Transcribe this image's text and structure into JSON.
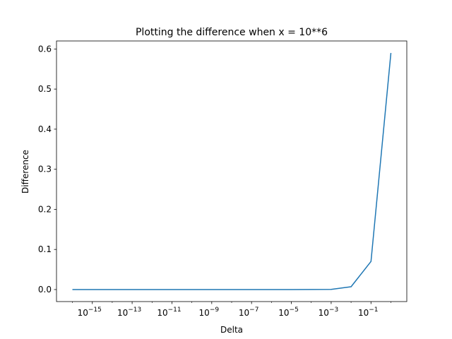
{
  "chart_data": {
    "type": "line",
    "title": "Plotting the difference when x = 10**6",
    "xlabel": "Delta",
    "ylabel": "Difference",
    "x_scale": "log",
    "x_exponents": [
      -16,
      -15,
      -14,
      -13,
      -12,
      -11,
      -10,
      -9,
      -8,
      -7,
      -6,
      -5,
      -4,
      -3,
      -2,
      -1,
      0
    ],
    "y": [
      0,
      0,
      0,
      0,
      0,
      0,
      0,
      0,
      0,
      0,
      0,
      1e-05,
      0.0001,
      0.0005,
      0.007,
      0.07,
      0.59
    ],
    "xlim_exponents": [
      -16.8,
      0.8
    ],
    "ylim": [
      -0.03,
      0.62
    ],
    "xticks": [
      {
        "label": "10",
        "exp": "−15",
        "value_exp": -15
      },
      {
        "label": "10",
        "exp": "−13",
        "value_exp": -13
      },
      {
        "label": "10",
        "exp": "−11",
        "value_exp": -11
      },
      {
        "label": "10",
        "exp": "−9",
        "value_exp": -9
      },
      {
        "label": "10",
        "exp": "−7",
        "value_exp": -7
      },
      {
        "label": "10",
        "exp": "−5",
        "value_exp": -5
      },
      {
        "label": "10",
        "exp": "−3",
        "value_exp": -3
      },
      {
        "label": "10",
        "exp": "−1",
        "value_exp": -1
      }
    ],
    "yticks": [
      "0.0",
      "0.1",
      "0.2",
      "0.3",
      "0.4",
      "0.5",
      "0.6"
    ],
    "yticks_values": [
      0.0,
      0.1,
      0.2,
      0.3,
      0.4,
      0.5,
      0.6
    ],
    "grid": false,
    "line_color": "#1f77b4"
  }
}
